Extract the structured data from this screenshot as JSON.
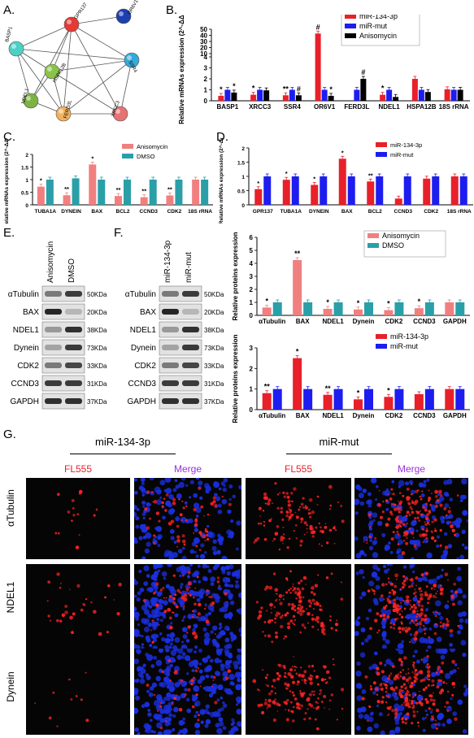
{
  "panels": {
    "A": "A.",
    "B": "B.",
    "C": "C.",
    "D": "D.",
    "E": "E.",
    "F": "F.",
    "G": "G."
  },
  "network": {
    "nodes": [
      "GPR137",
      "OR6V1",
      "BASP1",
      "SSR4",
      "HSPA12B",
      "NDEL1",
      "FERD3L",
      "XRCC3"
    ],
    "colors": [
      "#e53935",
      "#1e3fae",
      "#4dd0c4",
      "#35a9d8",
      "#8bc34a",
      "#7cb342",
      "#f2b25c",
      "#e57373"
    ]
  },
  "chart_data": [
    {
      "id": "B",
      "type": "bar",
      "ylabel": "Relative mRNAs expression (2^-ΔΔCt)",
      "ylim": [
        0,
        50
      ],
      "yticks": [
        0,
        1,
        2,
        3,
        4,
        10,
        20,
        30,
        40,
        50
      ],
      "categories": [
        "BASP1",
        "XRCC3",
        "SSR4",
        "OR6V1",
        "FERD3L",
        "NDEL1",
        "HSPA12B",
        "18S rRNA"
      ],
      "series": [
        {
          "name": "miR-134-3p",
          "color": "#e8202a",
          "values": [
            0.45,
            0.55,
            0.5,
            43,
            null,
            0.55,
            2.0,
            1.05
          ]
        },
        {
          "name": "miR-mut",
          "color": "#1d1df0",
          "values": [
            1.0,
            1.0,
            1.0,
            1.0,
            1.0,
            1.0,
            1.0,
            1.0
          ]
        },
        {
          "name": "Anisomycin",
          "color": "#000000",
          "values": [
            0.75,
            0.95,
            0.5,
            0.45,
            2.0,
            0.35,
            0.8,
            1.0
          ]
        }
      ],
      "annotations": [
        "*",
        "*",
        "*",
        "**",
        "#",
        "#",
        "*",
        "#",
        "*"
      ]
    },
    {
      "id": "C",
      "type": "bar",
      "ylabel": "Relative mRNAs expression (2^-ΔΔCt)",
      "ylim": [
        0,
        2.0
      ],
      "yticks": [
        0.0,
        0.5,
        1.0,
        1.5,
        2.0
      ],
      "categories": [
        "TUBA1A",
        "DYNEIN",
        "BAX",
        "BCL2",
        "CCND3",
        "CDK2",
        "18S rRNA"
      ],
      "series": [
        {
          "name": "Anisomycin",
          "color": "#f08080",
          "values": [
            0.72,
            0.38,
            1.6,
            0.35,
            0.3,
            0.37,
            1.0
          ]
        },
        {
          "name": "DMSO",
          "color": "#2a9fa8",
          "values": [
            1.0,
            1.05,
            1.0,
            1.0,
            1.0,
            1.0,
            1.0
          ]
        }
      ],
      "annotations": [
        "*",
        "**",
        "*",
        "**",
        "**",
        "**"
      ]
    },
    {
      "id": "D",
      "type": "bar",
      "ylabel": "Relative mRNAs expression (2^-ΔΔCt)",
      "ylim": [
        0,
        2.0
      ],
      "yticks": [
        0.0,
        0.5,
        1.0,
        1.5,
        2.0
      ],
      "categories": [
        "GPR137",
        "TUBA1A",
        "DYNEIN",
        "BAX",
        "BCL2",
        "CCND3",
        "CDK2",
        "18S rRNA"
      ],
      "series": [
        {
          "name": "miR-134-3p",
          "color": "#e8202a",
          "values": [
            0.55,
            0.88,
            0.7,
            1.62,
            0.82,
            0.22,
            0.92,
            1.0
          ]
        },
        {
          "name": "miR-mut",
          "color": "#1d1df0",
          "values": [
            1.0,
            1.0,
            1.0,
            1.0,
            1.0,
            1.0,
            1.0,
            1.0
          ]
        }
      ],
      "annotations": [
        "*",
        "*",
        "*",
        "*",
        "**"
      ]
    },
    {
      "id": "E-quant",
      "type": "bar",
      "ylabel": "Relative proteins expression",
      "ylim": [
        0,
        6
      ],
      "yticks": [
        0,
        1,
        2,
        3,
        4,
        5,
        6
      ],
      "categories": [
        "αTubulin",
        "BAX",
        "NDEL1",
        "Dynein",
        "CDK2",
        "CCND3",
        "GAPDH"
      ],
      "series": [
        {
          "name": "Anisomycin",
          "color": "#f08080",
          "values": [
            0.6,
            4.25,
            0.5,
            0.45,
            0.4,
            0.55,
            1.0
          ]
        },
        {
          "name": "DMSO",
          "color": "#2a9fa8",
          "values": [
            1.0,
            1.0,
            1.0,
            1.0,
            1.0,
            1.0,
            1.0
          ]
        }
      ],
      "annotations": [
        "*",
        "**",
        "*",
        "*",
        "*",
        "*"
      ]
    },
    {
      "id": "F-quant",
      "type": "bar",
      "ylabel": "Relative proteins expression",
      "ylim": [
        0,
        3
      ],
      "yticks": [
        0,
        1,
        2,
        3
      ],
      "categories": [
        "αTubulin",
        "BAX",
        "NDEL1",
        "Dynein",
        "CDK2",
        "CCND3",
        "GAPDH"
      ],
      "series": [
        {
          "name": "miR-134-3p",
          "color": "#e8202a",
          "values": [
            0.8,
            2.5,
            0.72,
            0.5,
            0.62,
            0.75,
            1.0
          ]
        },
        {
          "name": "miR-mut",
          "color": "#1d1df0",
          "values": [
            1.0,
            1.0,
            1.0,
            1.0,
            1.0,
            1.0,
            1.0
          ]
        }
      ],
      "annotations": [
        "**",
        "*",
        "**",
        "*",
        "*"
      ]
    }
  ],
  "blotE": {
    "lanes": [
      "Anisomycin",
      "DMSO"
    ],
    "proteins": [
      "αTubulin",
      "BAX",
      "NDEL1",
      "Dynein",
      "CDK2",
      "CCND3",
      "GAPDH"
    ],
    "sizes": [
      "50KDa",
      "20KDa",
      "38KDa",
      "73KDa",
      "33KDa",
      "31KDa",
      "37KDa"
    ]
  },
  "blotF": {
    "lanes": [
      "miR-134-3p",
      "miR-mut"
    ],
    "proteins": [
      "αTubulin",
      "BAX",
      "NDEL1",
      "Dynein",
      "CDK2",
      "CCND3",
      "GAPDH"
    ],
    "sizes": [
      "50KDa",
      "20KDa",
      "38KDa",
      "73KDa",
      "33KDa",
      "31KDa",
      "37KDa"
    ]
  },
  "panelG": {
    "groups": [
      "miR-134-3p",
      "miR-mut"
    ],
    "columns": [
      "FL555",
      "Merge",
      "FL555",
      "Merge"
    ],
    "rows": [
      "αTubulin",
      "NDEL1",
      "Dynein"
    ],
    "fl_color": "#e8202a",
    "merge_color": "#9b30d9"
  }
}
